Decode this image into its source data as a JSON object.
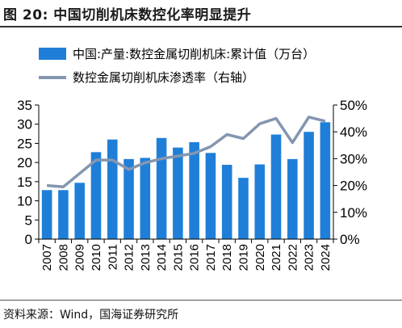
{
  "page": {
    "title": "图 20:  中国切削机床数控化率明显提升",
    "source": "资料来源：Wind，国海证券研究所"
  },
  "chart_data": {
    "type": "bar",
    "title": "",
    "categories": [
      "2007",
      "2008",
      "2009",
      "2010",
      "2011",
      "2012",
      "2013",
      "2014",
      "2015",
      "2016",
      "2017",
      "2018",
      "2019",
      "2020",
      "2021",
      "2022",
      "2023",
      "2024"
    ],
    "series": [
      {
        "name": "中国:产量:数控金属切削机床:累计值（万台）",
        "type": "bar",
        "axis": "left",
        "color": "#1f7fd8",
        "values": [
          12.8,
          12.8,
          14.7,
          22.7,
          26.0,
          20.9,
          21.2,
          26.4,
          23.9,
          25.3,
          22.5,
          19.4,
          16.0,
          19.5,
          27.3,
          20.9,
          28.0,
          30.5
        ]
      },
      {
        "name": "数控金属切削机床渗透率（右轴）",
        "type": "line",
        "axis": "right",
        "color": "#8496b0",
        "values": [
          0.2,
          0.195,
          0.245,
          0.295,
          0.295,
          0.26,
          0.285,
          0.3,
          0.31,
          0.32,
          0.345,
          0.39,
          0.375,
          0.43,
          0.45,
          0.36,
          0.455,
          0.44
        ]
      }
    ],
    "left_axis": {
      "min": 0,
      "max": 35,
      "ticks": [
        "0",
        "5",
        "10",
        "15",
        "20",
        "25",
        "30",
        "35"
      ]
    },
    "right_axis": {
      "min": 0,
      "max": 0.5,
      "ticks": [
        "0%",
        "10%",
        "20%",
        "30%",
        "40%",
        "50%"
      ]
    },
    "grid": false,
    "legend_position": "top-left"
  }
}
